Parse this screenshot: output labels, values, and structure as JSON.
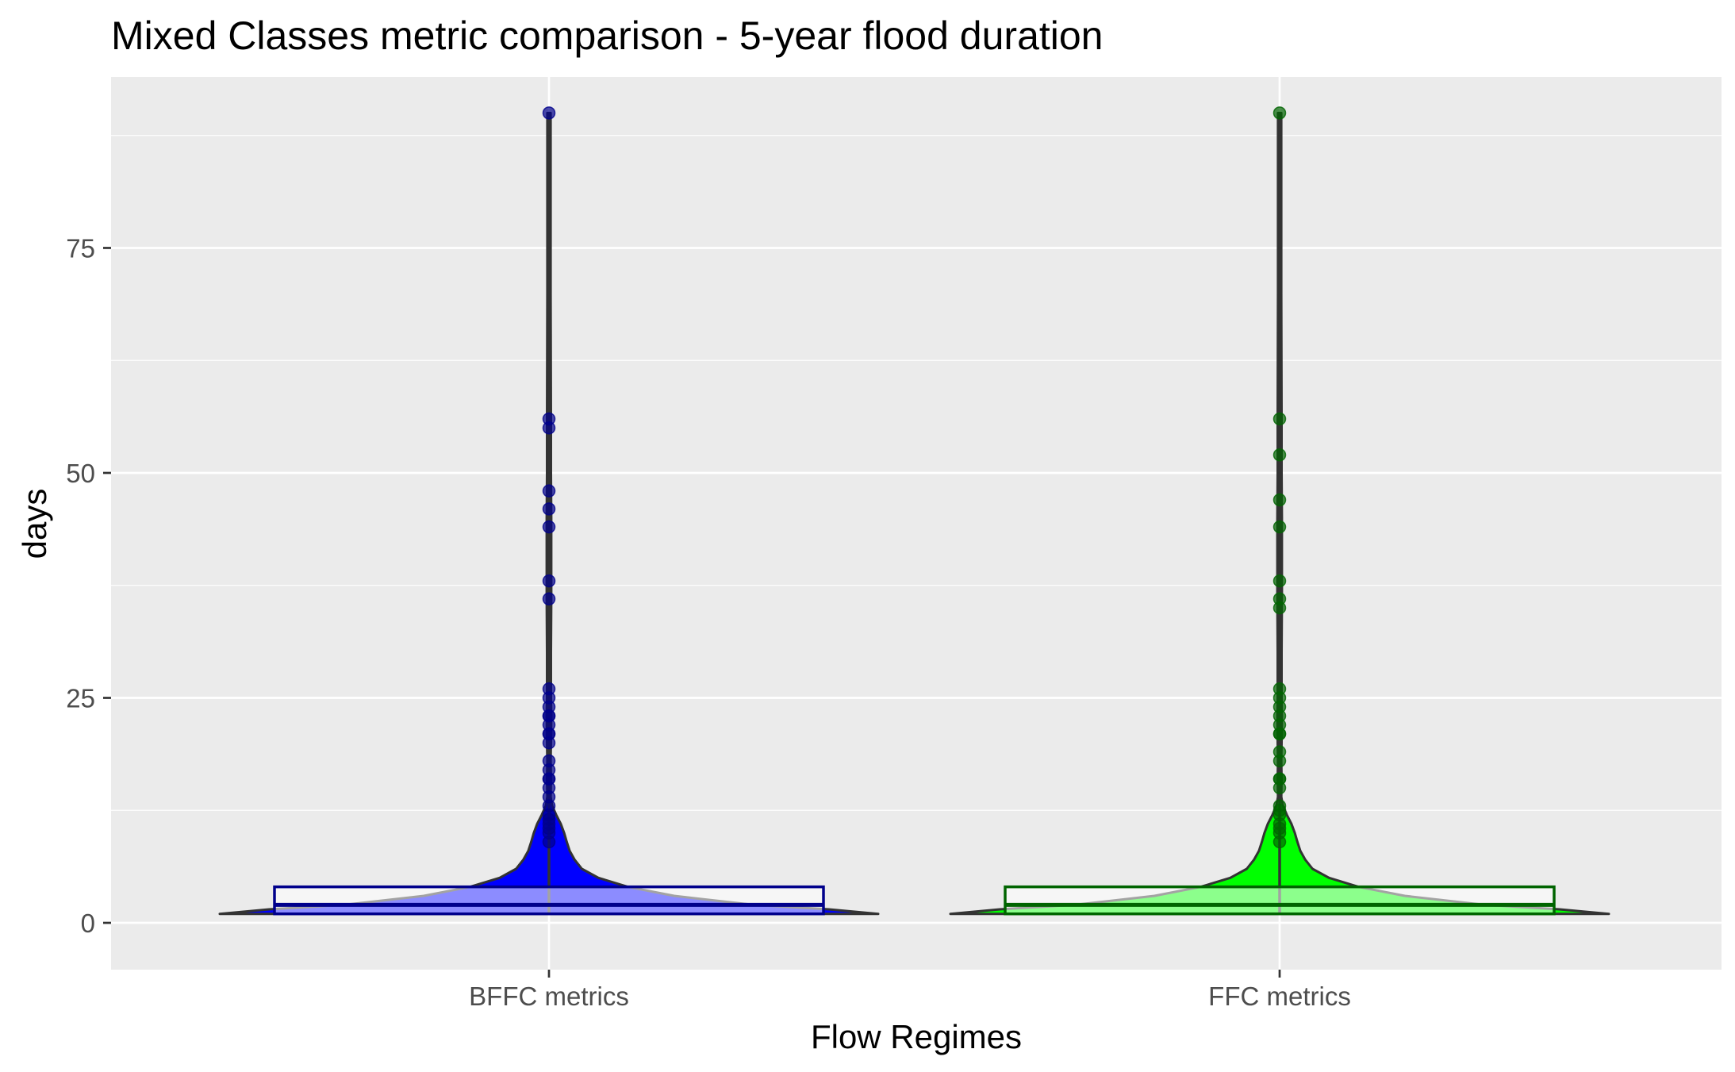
{
  "chart_data": {
    "type": "violin",
    "title": "Mixed Classes metric comparison - 5-year flood duration",
    "xlabel": "Flow Regimes",
    "ylabel": "days",
    "categories": [
      "BFFC metrics",
      "FFC metrics"
    ],
    "ylim": [
      -5.2,
      94
    ],
    "yticks": [
      0,
      25,
      50,
      75
    ],
    "grid": true,
    "legend": "none",
    "series": [
      {
        "category": "BFFC metrics",
        "fill_color": "#0000ff",
        "box_fill_color": "#9999ff",
        "point_color": "#00008b",
        "box_color": "#00008b",
        "box": {
          "q1": 1,
          "median": 2,
          "q3": 4,
          "whisker_low": 1,
          "whisker_high": 90
        },
        "outliers": [
          9,
          10,
          10.5,
          11,
          11.5,
          12,
          13,
          14,
          15,
          16,
          16,
          17,
          18,
          20,
          21,
          21,
          22,
          23,
          23,
          24,
          25,
          26,
          36,
          38,
          44,
          46,
          48,
          55,
          56,
          90
        ]
      },
      {
        "category": "FFC metrics",
        "fill_color": "#00ff00",
        "box_fill_color": "#99ff99",
        "point_color": "#006400",
        "box_color": "#006400",
        "box": {
          "q1": 1,
          "median": 2,
          "q3": 4,
          "whisker_low": 1,
          "whisker_high": 90
        },
        "outliers": [
          9,
          10,
          10.5,
          11,
          12,
          12.5,
          13,
          15,
          16,
          16,
          18,
          19,
          21,
          21,
          22,
          23,
          24,
          25,
          26,
          35,
          36,
          38,
          44,
          47,
          52,
          56,
          90
        ]
      }
    ],
    "violin_profile": [
      [
        1,
        1.0
      ],
      [
        1.5,
        0.85
      ],
      [
        2,
        0.62
      ],
      [
        3,
        0.38
      ],
      [
        4,
        0.24
      ],
      [
        5,
        0.15
      ],
      [
        6,
        0.1
      ],
      [
        7,
        0.078
      ],
      [
        8,
        0.063
      ],
      [
        9,
        0.054
      ],
      [
        10,
        0.046
      ],
      [
        11,
        0.036
      ],
      [
        12,
        0.022
      ],
      [
        13,
        0.01
      ],
      [
        14,
        0.005
      ],
      [
        16,
        0.006
      ],
      [
        18,
        0.005
      ],
      [
        20,
        0.006
      ],
      [
        23,
        0.007
      ],
      [
        25,
        0.006
      ],
      [
        30,
        0.006
      ],
      [
        36,
        0.007
      ],
      [
        45,
        0.007
      ],
      [
        50,
        0.006
      ],
      [
        56,
        0.006
      ],
      [
        70,
        0.005
      ],
      [
        90,
        0.005
      ]
    ]
  }
}
